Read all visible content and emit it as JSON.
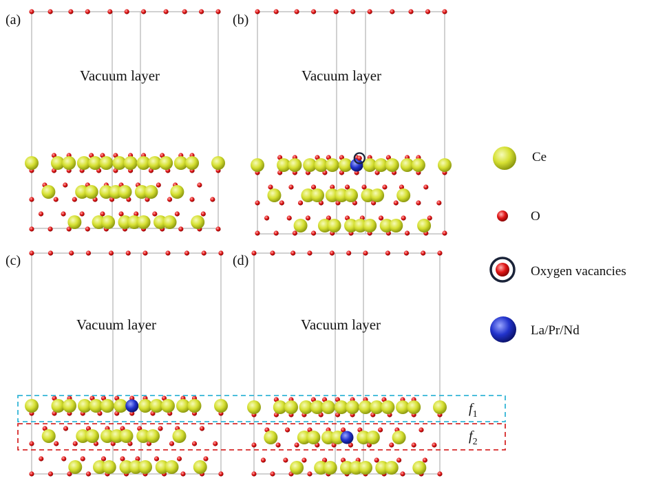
{
  "colors": {
    "ce": "#d6e033",
    "o": "#e01515",
    "dopant": "#2233cc",
    "vacancy_ring": "#1a2338",
    "region_f1": "#33b5d6",
    "region_f2": "#d62828",
    "cell": "#b8b8b8"
  },
  "panels": [
    {
      "id": "a",
      "label": "(a)",
      "vacuum": "Vacuum layer"
    },
    {
      "id": "b",
      "label": "(b)",
      "vacuum": "Vacuum layer"
    },
    {
      "id": "c",
      "label": "(c)",
      "vacuum": "Vacuum layer"
    },
    {
      "id": "d",
      "label": "(d)",
      "vacuum": "Vacuum layer"
    }
  ],
  "legend": [
    {
      "kind": "ce",
      "label": "Ce"
    },
    {
      "kind": "o",
      "label": "O"
    },
    {
      "kind": "vacancy",
      "label": "Oxygen vacancies"
    },
    {
      "kind": "dopant",
      "label": "La/Pr/Nd"
    }
  ],
  "regions": [
    {
      "name": "f1",
      "label": "f",
      "sub": "1"
    },
    {
      "name": "f2",
      "label": "f",
      "sub": "2"
    }
  ]
}
